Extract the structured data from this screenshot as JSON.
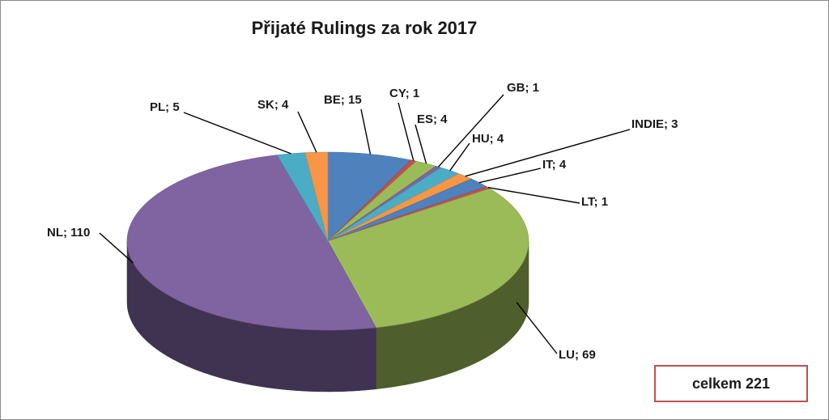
{
  "chart_data": {
    "type": "pie",
    "title": "Přijaté Rulings za rok 2017",
    "slices": [
      {
        "name": "BE",
        "value": 15,
        "label": "BE; 15",
        "color": "#4f81bd"
      },
      {
        "name": "CY",
        "value": 1,
        "label": "CY; 1",
        "color": "#c0504d"
      },
      {
        "name": "ES",
        "value": 4,
        "label": "ES; 4",
        "color": "#9bbb59"
      },
      {
        "name": "GB",
        "value": 1,
        "label": "GB; 1",
        "color": "#8064a2"
      },
      {
        "name": "HU",
        "value": 4,
        "label": "HU; 4",
        "color": "#4bacc6"
      },
      {
        "name": "INDIE",
        "value": 3,
        "label": "INDIE; 3",
        "color": "#f79646"
      },
      {
        "name": "IT",
        "value": 4,
        "label": "IT; 4",
        "color": "#4f81bd"
      },
      {
        "name": "LT",
        "value": 1,
        "label": "LT; 1",
        "color": "#c0504d"
      },
      {
        "name": "LU",
        "value": 69,
        "label": "LU; 69",
        "color": "#9bbb59"
      },
      {
        "name": "NL",
        "value": 110,
        "label": "NL; 110",
        "color": "#8064a2"
      },
      {
        "name": "PL",
        "value": 5,
        "label": "PL; 5",
        "color": "#4bacc6"
      },
      {
        "name": "SK",
        "value": 4,
        "label": "SK; 4",
        "color": "#f79646"
      }
    ]
  },
  "total_label": "celkem 221"
}
